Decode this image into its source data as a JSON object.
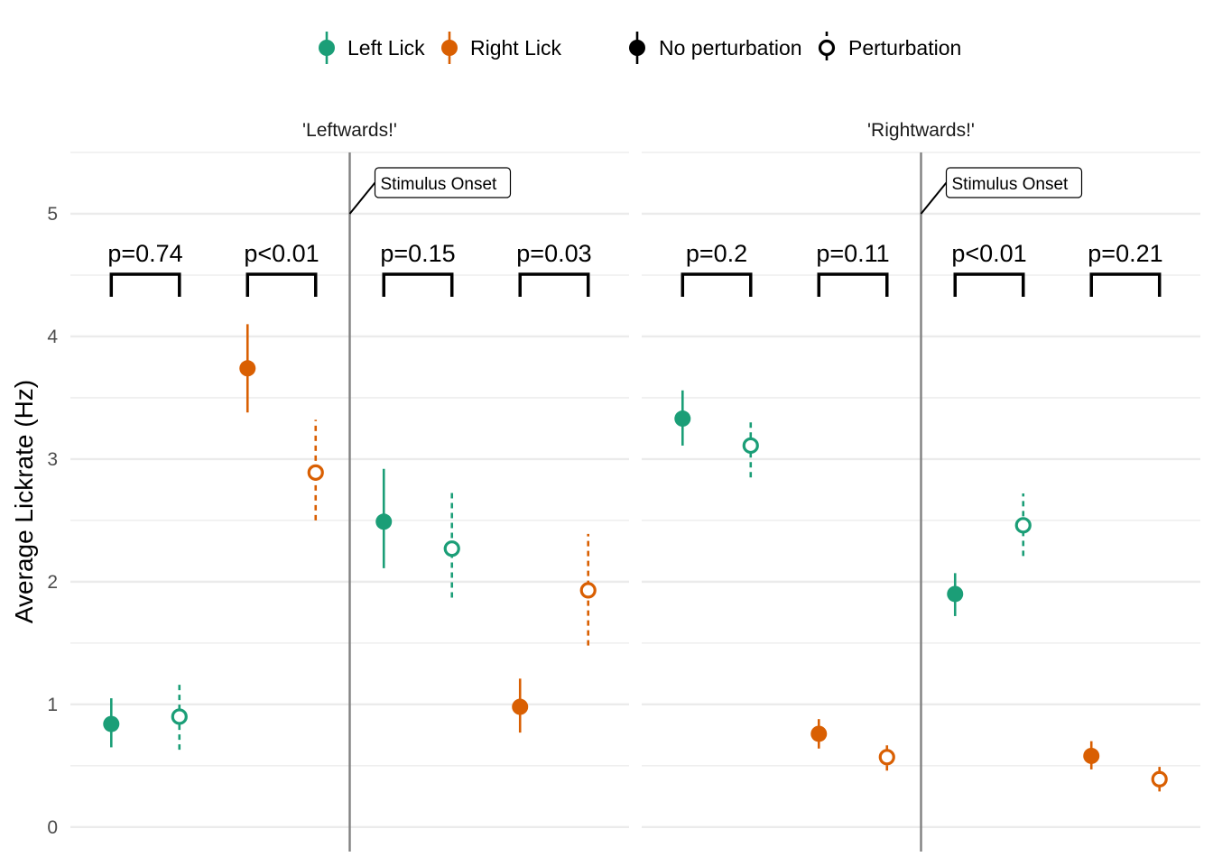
{
  "chart_data": {
    "type": "scatter",
    "ylabel": "Average Lickrate (Hz)",
    "ylim": [
      -0.2,
      5.5
    ],
    "yticks": [
      0,
      1,
      2,
      3,
      4,
      5
    ],
    "grid": true,
    "legend": {
      "placement": "top",
      "items": [
        {
          "label": "Left Lick",
          "kind": "color",
          "color": "#1b9e77"
        },
        {
          "label": "Right Lick",
          "kind": "color",
          "color": "#d95f02"
        },
        {
          "label": "No perturbation",
          "kind": "filled",
          "color": "#000000"
        },
        {
          "label": "Perturbation",
          "kind": "open",
          "color": "#000000"
        }
      ]
    },
    "colors": {
      "left": "#1b9e77",
      "right": "#d95f02"
    },
    "panels": [
      {
        "title": "'Leftwards!'",
        "annotation": "Stimulus Onset",
        "points": [
          {
            "x": 1,
            "lick": "left",
            "perturbation": false,
            "y": 0.84,
            "lo": 0.65,
            "hi": 1.05
          },
          {
            "x": 2,
            "lick": "left",
            "perturbation": true,
            "y": 0.9,
            "lo": 0.63,
            "hi": 1.19
          },
          {
            "x": 3,
            "lick": "right",
            "perturbation": false,
            "y": 3.74,
            "lo": 3.38,
            "hi": 4.1
          },
          {
            "x": 4,
            "lick": "right",
            "perturbation": true,
            "y": 2.89,
            "lo": 2.5,
            "hi": 3.32
          },
          {
            "x": 5,
            "lick": "left",
            "perturbation": false,
            "y": 2.49,
            "lo": 2.11,
            "hi": 2.92
          },
          {
            "x": 6,
            "lick": "left",
            "perturbation": true,
            "y": 2.27,
            "lo": 1.87,
            "hi": 2.76
          },
          {
            "x": 7,
            "lick": "right",
            "perturbation": false,
            "y": 0.98,
            "lo": 0.77,
            "hi": 1.21
          },
          {
            "x": 8,
            "lick": "right",
            "perturbation": true,
            "y": 1.93,
            "lo": 1.48,
            "hi": 2.39
          }
        ],
        "brackets": [
          {
            "x1": 1,
            "x2": 2,
            "label": "p=0.74"
          },
          {
            "x1": 3,
            "x2": 4,
            "label": "p<0.01"
          },
          {
            "x1": 5,
            "x2": 6,
            "label": "p=0.15"
          },
          {
            "x1": 7,
            "x2": 8,
            "label": "p=0.03"
          }
        ]
      },
      {
        "title": "'Rightwards!'",
        "annotation": "Stimulus Onset",
        "points": [
          {
            "x": 1,
            "lick": "left",
            "perturbation": false,
            "y": 3.33,
            "lo": 3.11,
            "hi": 3.56
          },
          {
            "x": 2,
            "lick": "left",
            "perturbation": true,
            "y": 3.11,
            "lo": 2.85,
            "hi": 3.33
          },
          {
            "x": 3,
            "lick": "right",
            "perturbation": false,
            "y": 0.76,
            "lo": 0.64,
            "hi": 0.88
          },
          {
            "x": 4,
            "lick": "right",
            "perturbation": true,
            "y": 0.57,
            "lo": 0.46,
            "hi": 0.67
          },
          {
            "x": 5,
            "lick": "left",
            "perturbation": false,
            "y": 1.9,
            "lo": 1.72,
            "hi": 2.07
          },
          {
            "x": 6,
            "lick": "left",
            "perturbation": true,
            "y": 2.46,
            "lo": 2.21,
            "hi": 2.72
          },
          {
            "x": 7,
            "lick": "right",
            "perturbation": false,
            "y": 0.58,
            "lo": 0.47,
            "hi": 0.7
          },
          {
            "x": 8,
            "lick": "right",
            "perturbation": true,
            "y": 0.39,
            "lo": 0.29,
            "hi": 0.49
          }
        ],
        "brackets": [
          {
            "x1": 1,
            "x2": 2,
            "label": "p=0.2"
          },
          {
            "x1": 3,
            "x2": 4,
            "label": "p=0.11"
          },
          {
            "x1": 5,
            "x2": 6,
            "label": "p<0.01"
          },
          {
            "x1": 7,
            "x2": 8,
            "label": "p=0.21"
          }
        ]
      }
    ]
  }
}
